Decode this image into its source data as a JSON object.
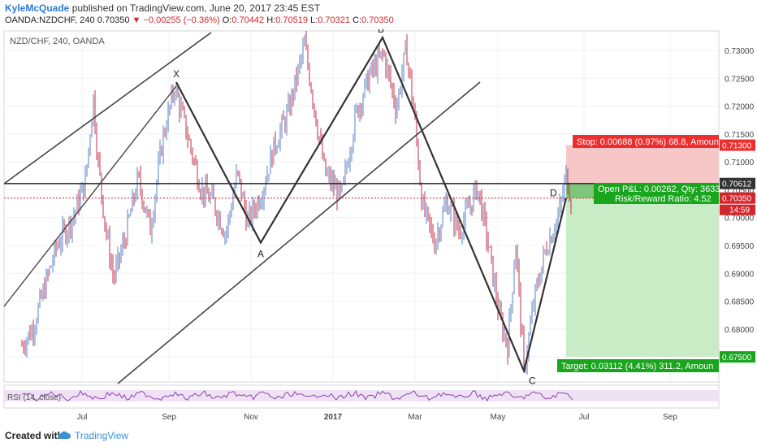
{
  "header": {
    "author": "KyleMcQuade",
    "published_text": "published on TradingView.com, June 20, 2017 23:45 EST",
    "symbol_line": "OANDA:NZDCHF, 240",
    "last": "0.70350",
    "change": "▼ −0.00255 (−0.36%)",
    "o_label": "O:",
    "o_value": "0.70442",
    "h_label": "H:",
    "h_value": "0.70519",
    "l_label": "L:",
    "l_value": "0.70321",
    "c_label": "C:",
    "c_value": "0.70350"
  },
  "chart": {
    "legend": "NZD/CHF, 240, OANDA",
    "rsi_label": "RSI (14, close)"
  },
  "trade_box": {
    "stop_label": "Stop: 0.00688 (0.97%) 68.8, Amoun",
    "pnl_label": "Open P&L: 0.00262, Qty: 3633",
    "rr_label": "Risk/Reward Ratio: 4.52",
    "target_label": "Target: 0.03112 (4.41%) 311.2, Amoun",
    "countdown": "14:59"
  },
  "footer": {
    "created_with": "Created with",
    "brand": "TradingView"
  },
  "colors": {
    "up": "#5b7fc4",
    "down": "#c0304a",
    "stop_zone": "#f7c6c6",
    "target_zone": "#c9ecc6",
    "stop_label": "#ee2e2e",
    "target_label": "#1aa51e",
    "rsi": "#8e44ad"
  },
  "chart_data": {
    "type": "candlestick",
    "symbol": "NZD/CHF",
    "timeframe": "240",
    "x_ticks": [
      "Jul",
      "Sep",
      "Nov",
      "2017",
      "Mar",
      "May",
      "Jul",
      "Sep"
    ],
    "y_ticks": [
      0.675,
      0.68,
      0.685,
      0.69,
      0.695,
      0.7,
      0.705,
      0.71,
      0.715,
      0.72,
      0.725,
      0.73
    ],
    "ylim": [
      0.6705,
      0.7335
    ],
    "price_path": [
      [
        0,
        0.671
      ],
      [
        40,
        0.68
      ],
      [
        70,
        0.695
      ],
      [
        90,
        0.7
      ],
      [
        105,
        0.7065
      ],
      [
        115,
        0.7215
      ],
      [
        120,
        0.711
      ],
      [
        130,
        0.698
      ],
      [
        140,
        0.689
      ],
      [
        155,
        0.697
      ],
      [
        170,
        0.707
      ],
      [
        185,
        0.698
      ],
      [
        200,
        0.714
      ],
      [
        215,
        0.7235
      ],
      [
        232,
        0.714
      ],
      [
        248,
        0.705
      ],
      [
        262,
        0.703
      ],
      [
        278,
        0.697
      ],
      [
        292,
        0.708
      ],
      [
        305,
        0.699
      ],
      [
        322,
        0.7045
      ],
      [
        338,
        0.713
      ],
      [
        355,
        0.719
      ],
      [
        375,
        0.731
      ],
      [
        390,
        0.717
      ],
      [
        400,
        0.708
      ],
      [
        420,
        0.7035
      ],
      [
        438,
        0.7185
      ],
      [
        455,
        0.7255
      ],
      [
        472,
        0.7295
      ],
      [
        488,
        0.7195
      ],
      [
        500,
        0.7305
      ],
      [
        510,
        0.7185
      ],
      [
        520,
        0.702
      ],
      [
        535,
        0.6955
      ],
      [
        550,
        0.703
      ],
      [
        565,
        0.6975
      ],
      [
        588,
        0.7055
      ],
      [
        600,
        0.696
      ],
      [
        615,
        0.682
      ],
      [
        625,
        0.677
      ],
      [
        635,
        0.6955
      ],
      [
        645,
        0.6725
      ],
      [
        658,
        0.6855
      ],
      [
        672,
        0.6945
      ],
      [
        688,
        0.7005
      ],
      [
        697,
        0.7075
      ],
      [
        703,
        0.7035
      ]
    ],
    "harmonic_pattern": {
      "labels": [
        "X",
        "A",
        "B",
        "C",
        "D"
      ],
      "X": 0.7243,
      "A": 0.6955,
      "B": 0.7323,
      "C": 0.6725,
      "D": 0.7035
    },
    "horizontal_level": 0.7061,
    "price_labels": [
      "0.71300",
      "0.70612",
      "0.70350",
      "0.67500"
    ],
    "position": {
      "side": "short",
      "entry": 0.70612,
      "stop": 0.713,
      "target": 0.675,
      "current": 0.7035,
      "stop_pct": "0.97%",
      "target_pct": "4.41%",
      "risk_reward": 4.52
    },
    "indicator": {
      "name": "RSI",
      "period": 14,
      "source": "close"
    }
  }
}
